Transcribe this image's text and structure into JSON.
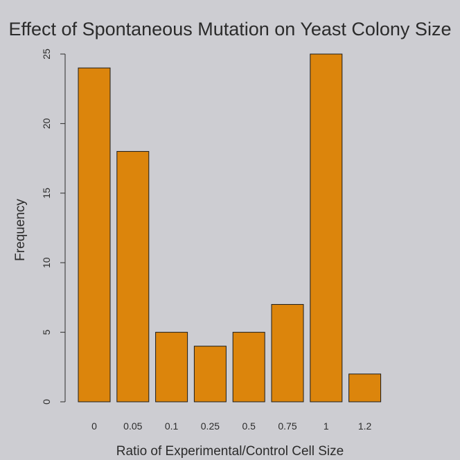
{
  "chart_data": {
    "type": "bar",
    "title": "Effect of Spontaneous Mutation on Yeast Colony Size",
    "xlabel": "Ratio of Experimental/Control Cell Size",
    "ylabel": "Frequency",
    "categories": [
      "0",
      "0.05",
      "0.1",
      "0.25",
      "0.5",
      "0.75",
      "1",
      "1.2"
    ],
    "values": [
      24,
      18,
      5,
      4,
      5,
      7,
      25,
      2
    ],
    "ylim": [
      0,
      25
    ],
    "yticks": [
      0,
      5,
      10,
      15,
      20,
      25
    ],
    "grid": false,
    "bar_color": "#dc850c",
    "bar_border_color": "#1a1a1a",
    "background_color": "#cdcdd2"
  }
}
